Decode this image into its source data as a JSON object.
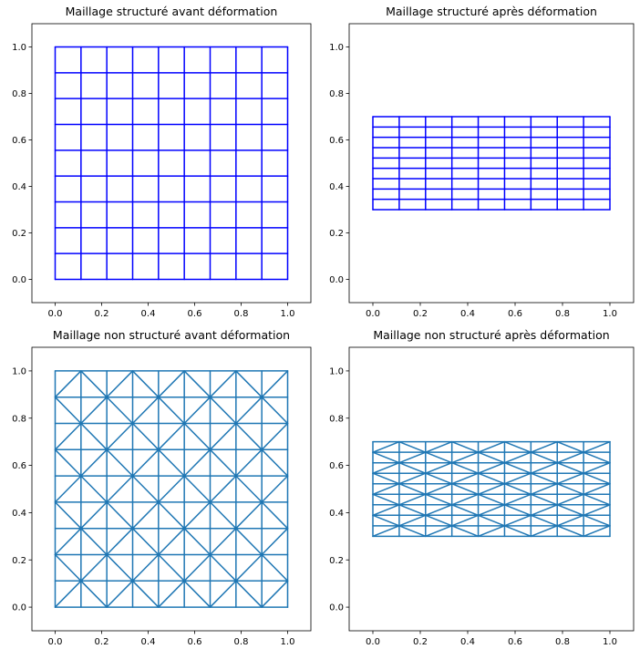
{
  "chart_data": [
    {
      "type": "line",
      "title": "Maillage structuré avant déformation",
      "xlim": [
        -0.1,
        1.1
      ],
      "ylim": [
        -0.1,
        1.1
      ],
      "x_ticks": [
        "0.0",
        "0.2",
        "0.4",
        "0.6",
        "0.8",
        "1.0"
      ],
      "y_ticks": [
        "0.0",
        "0.2",
        "0.4",
        "0.6",
        "0.8",
        "1.0"
      ],
      "line_color": "#0000ff",
      "mesh": {
        "kind": "structured",
        "x": [
          0,
          1
        ],
        "y": [
          0,
          1
        ],
        "divisions": 9
      }
    },
    {
      "type": "line",
      "title": "Maillage structuré après déformation",
      "xlim": [
        -0.1,
        1.1
      ],
      "ylim": [
        -0.1,
        1.1
      ],
      "x_ticks": [
        "0.0",
        "0.2",
        "0.4",
        "0.6",
        "0.8",
        "1.0"
      ],
      "y_ticks": [
        "0.0",
        "0.2",
        "0.4",
        "0.6",
        "0.8",
        "1.0"
      ],
      "line_color": "#0000ff",
      "mesh": {
        "kind": "structured",
        "x": [
          0,
          1
        ],
        "y": [
          0.3,
          0.7
        ],
        "divisions": 9
      }
    },
    {
      "type": "line",
      "title": "Maillage non structuré avant déformation",
      "xlim": [
        -0.1,
        1.1
      ],
      "ylim": [
        -0.1,
        1.1
      ],
      "x_ticks": [
        "0.0",
        "0.2",
        "0.4",
        "0.6",
        "0.8",
        "1.0"
      ],
      "y_ticks": [
        "0.0",
        "0.2",
        "0.4",
        "0.6",
        "0.8",
        "1.0"
      ],
      "line_color": "#1f77b4",
      "mesh": {
        "kind": "triangulated",
        "x": [
          0,
          1
        ],
        "y": [
          0,
          1
        ],
        "divisions": 9
      }
    },
    {
      "type": "line",
      "title": "Maillage non structuré après déformation",
      "xlim": [
        -0.1,
        1.1
      ],
      "ylim": [
        -0.1,
        1.1
      ],
      "x_ticks": [
        "0.0",
        "0.2",
        "0.4",
        "0.6",
        "0.8",
        "1.0"
      ],
      "y_ticks": [
        "0.0",
        "0.2",
        "0.4",
        "0.6",
        "0.8",
        "1.0"
      ],
      "line_color": "#1f77b4",
      "mesh": {
        "kind": "triangulated",
        "x": [
          0,
          1
        ],
        "y": [
          0.3,
          0.7
        ],
        "divisions": 9
      }
    }
  ]
}
